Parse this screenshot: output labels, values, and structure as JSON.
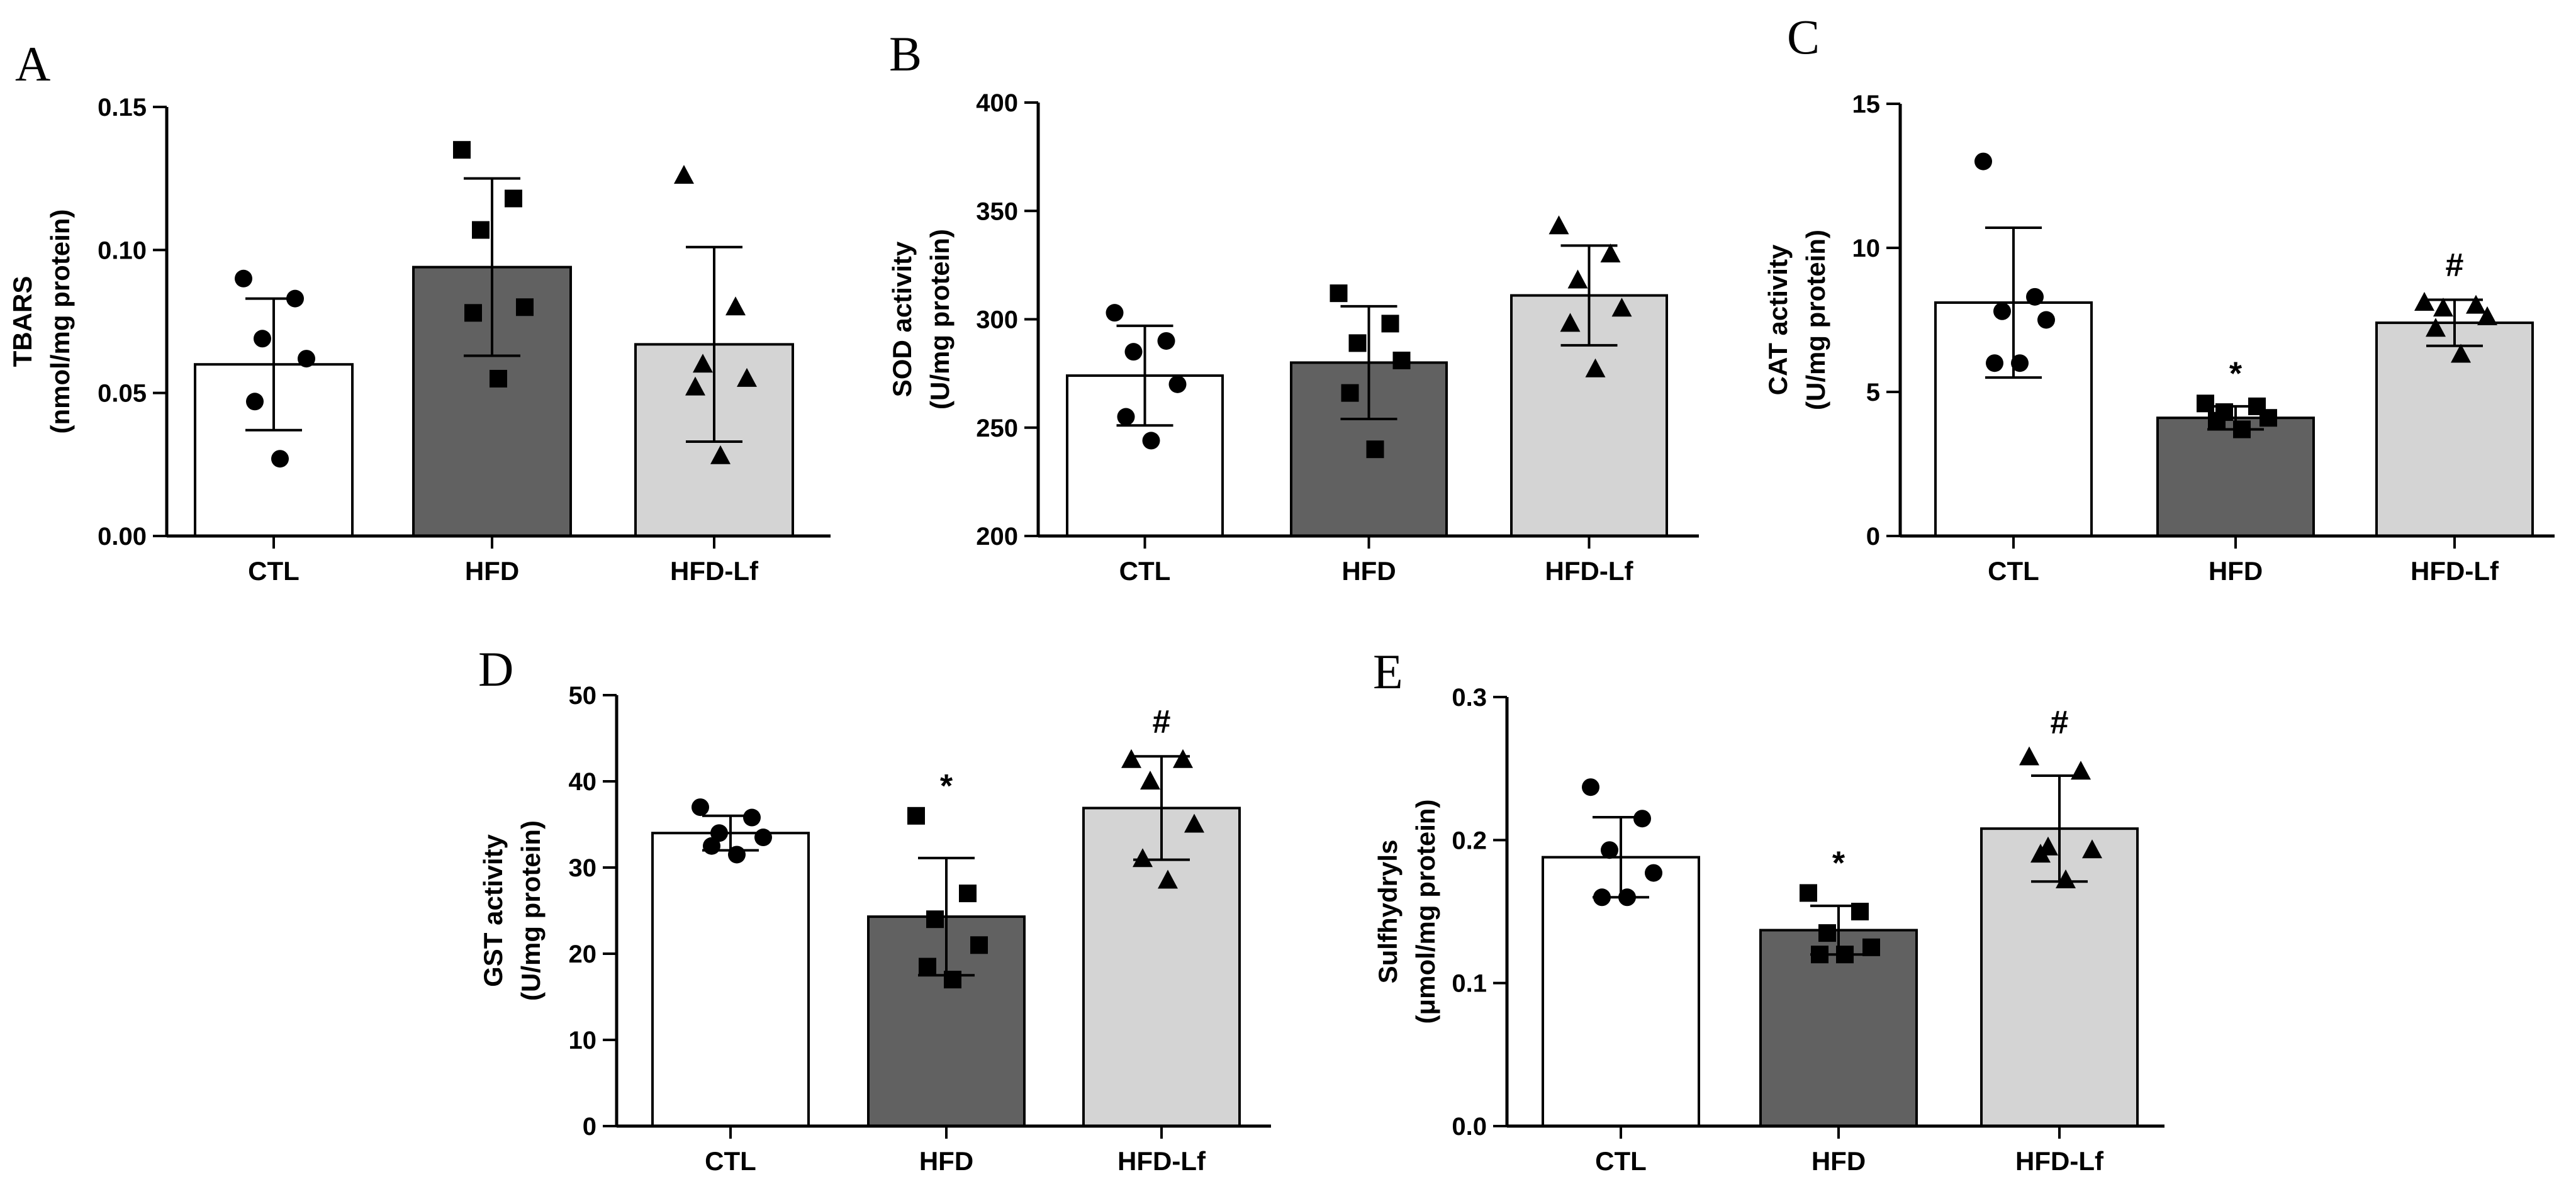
{
  "colors": {
    "CTL": "#ffffff",
    "HFD": "#616161",
    "HFD-Lf": "#d4d4d4",
    "stroke": "#000000"
  },
  "chart_data": [
    {
      "panel": "A",
      "type": "bar",
      "categories": [
        "CTL",
        "HFD",
        "HFD-Lf"
      ],
      "ylabel_lines": [
        "TBARS",
        "(nmol/mg protein)"
      ],
      "ylim": [
        0,
        0.15
      ],
      "ticks": [
        "0.00",
        "0.05",
        "0.10",
        "0.15"
      ],
      "values": [
        0.06,
        0.094,
        0.067
      ],
      "sd": [
        0.023,
        0.031,
        0.034
      ],
      "points": [
        [
          0.09,
          0.083,
          0.069,
          0.062,
          0.047,
          0.027
        ],
        [
          0.135,
          0.118,
          0.107,
          0.08,
          0.078,
          0.055
        ],
        [
          0.126,
          0.08,
          0.06,
          0.055,
          0.052,
          0.028
        ]
      ],
      "marks": [
        "",
        "",
        ""
      ]
    },
    {
      "panel": "B",
      "type": "bar",
      "categories": [
        "CTL",
        "HFD",
        "HFD-Lf"
      ],
      "ylabel_lines": [
        "SOD activity",
        "(U/mg protein)"
      ],
      "ylim": [
        200,
        400
      ],
      "ticks": [
        "200",
        "250",
        "300",
        "350",
        "400"
      ],
      "values": [
        274,
        280,
        311
      ],
      "sd": [
        23,
        26,
        23
      ],
      "points": [
        [
          303,
          290,
          285,
          270,
          255,
          244
        ],
        [
          312,
          298,
          289,
          281,
          266,
          240
        ],
        [
          343,
          330,
          318,
          305,
          298,
          277
        ]
      ],
      "marks": [
        "",
        "",
        ""
      ]
    },
    {
      "panel": "C",
      "type": "bar",
      "categories": [
        "CTL",
        "HFD",
        "HFD-Lf"
      ],
      "ylabel_lines": [
        "CAT activity",
        "(U/mg protein)"
      ],
      "ylim": [
        0,
        15
      ],
      "ticks": [
        "0",
        "5",
        "10",
        "15"
      ],
      "values": [
        8.1,
        4.1,
        7.4
      ],
      "sd": [
        2.6,
        0.4,
        0.8
      ],
      "points": [
        [
          13.0,
          8.3,
          7.8,
          7.5,
          6.0,
          6.0
        ],
        [
          4.6,
          4.5,
          4.3,
          4.1,
          4.0,
          3.7
        ],
        [
          8.1,
          8.0,
          7.9,
          7.6,
          7.2,
          6.3
        ]
      ],
      "marks": [
        "",
        "*",
        "#"
      ]
    },
    {
      "panel": "D",
      "type": "bar",
      "categories": [
        "CTL",
        "HFD",
        "HFD-Lf"
      ],
      "ylabel_lines": [
        "GST activity",
        "(U/mg protein)"
      ],
      "ylim": [
        0,
        50
      ],
      "ticks": [
        "0",
        "10",
        "20",
        "30",
        "40",
        "50"
      ],
      "values": [
        34.0,
        24.3,
        36.9
      ],
      "sd": [
        2.0,
        6.8,
        6.0
      ],
      "points": [
        [
          37.0,
          35.8,
          34.0,
          33.5,
          32.5,
          31.5
        ],
        [
          36.0,
          27.0,
          24.0,
          21.0,
          18.5,
          17.0
        ],
        [
          42.5,
          42.5,
          40.0,
          35.0,
          31.0,
          28.5
        ]
      ],
      "marks": [
        "",
        "*",
        "#"
      ]
    },
    {
      "panel": "E",
      "type": "bar",
      "categories": [
        "CTL",
        "HFD",
        "HFD-Lf"
      ],
      "ylabel_lines": [
        "Sulfhydryls",
        "(μmol/mg protein)"
      ],
      "ylim": [
        0,
        0.3
      ],
      "ticks": [
        "0.0",
        "0.1",
        "0.2",
        "0.3"
      ],
      "values": [
        0.188,
        0.137,
        0.208
      ],
      "sd": [
        0.028,
        0.017,
        0.037
      ],
      "points": [
        [
          0.237,
          0.215,
          0.193,
          0.177,
          0.16,
          0.16
        ],
        [
          0.163,
          0.15,
          0.135,
          0.125,
          0.12,
          0.12
        ],
        [
          0.258,
          0.248,
          0.195,
          0.193,
          0.19,
          0.172
        ]
      ],
      "marks": [
        "",
        "*",
        "#"
      ]
    }
  ]
}
